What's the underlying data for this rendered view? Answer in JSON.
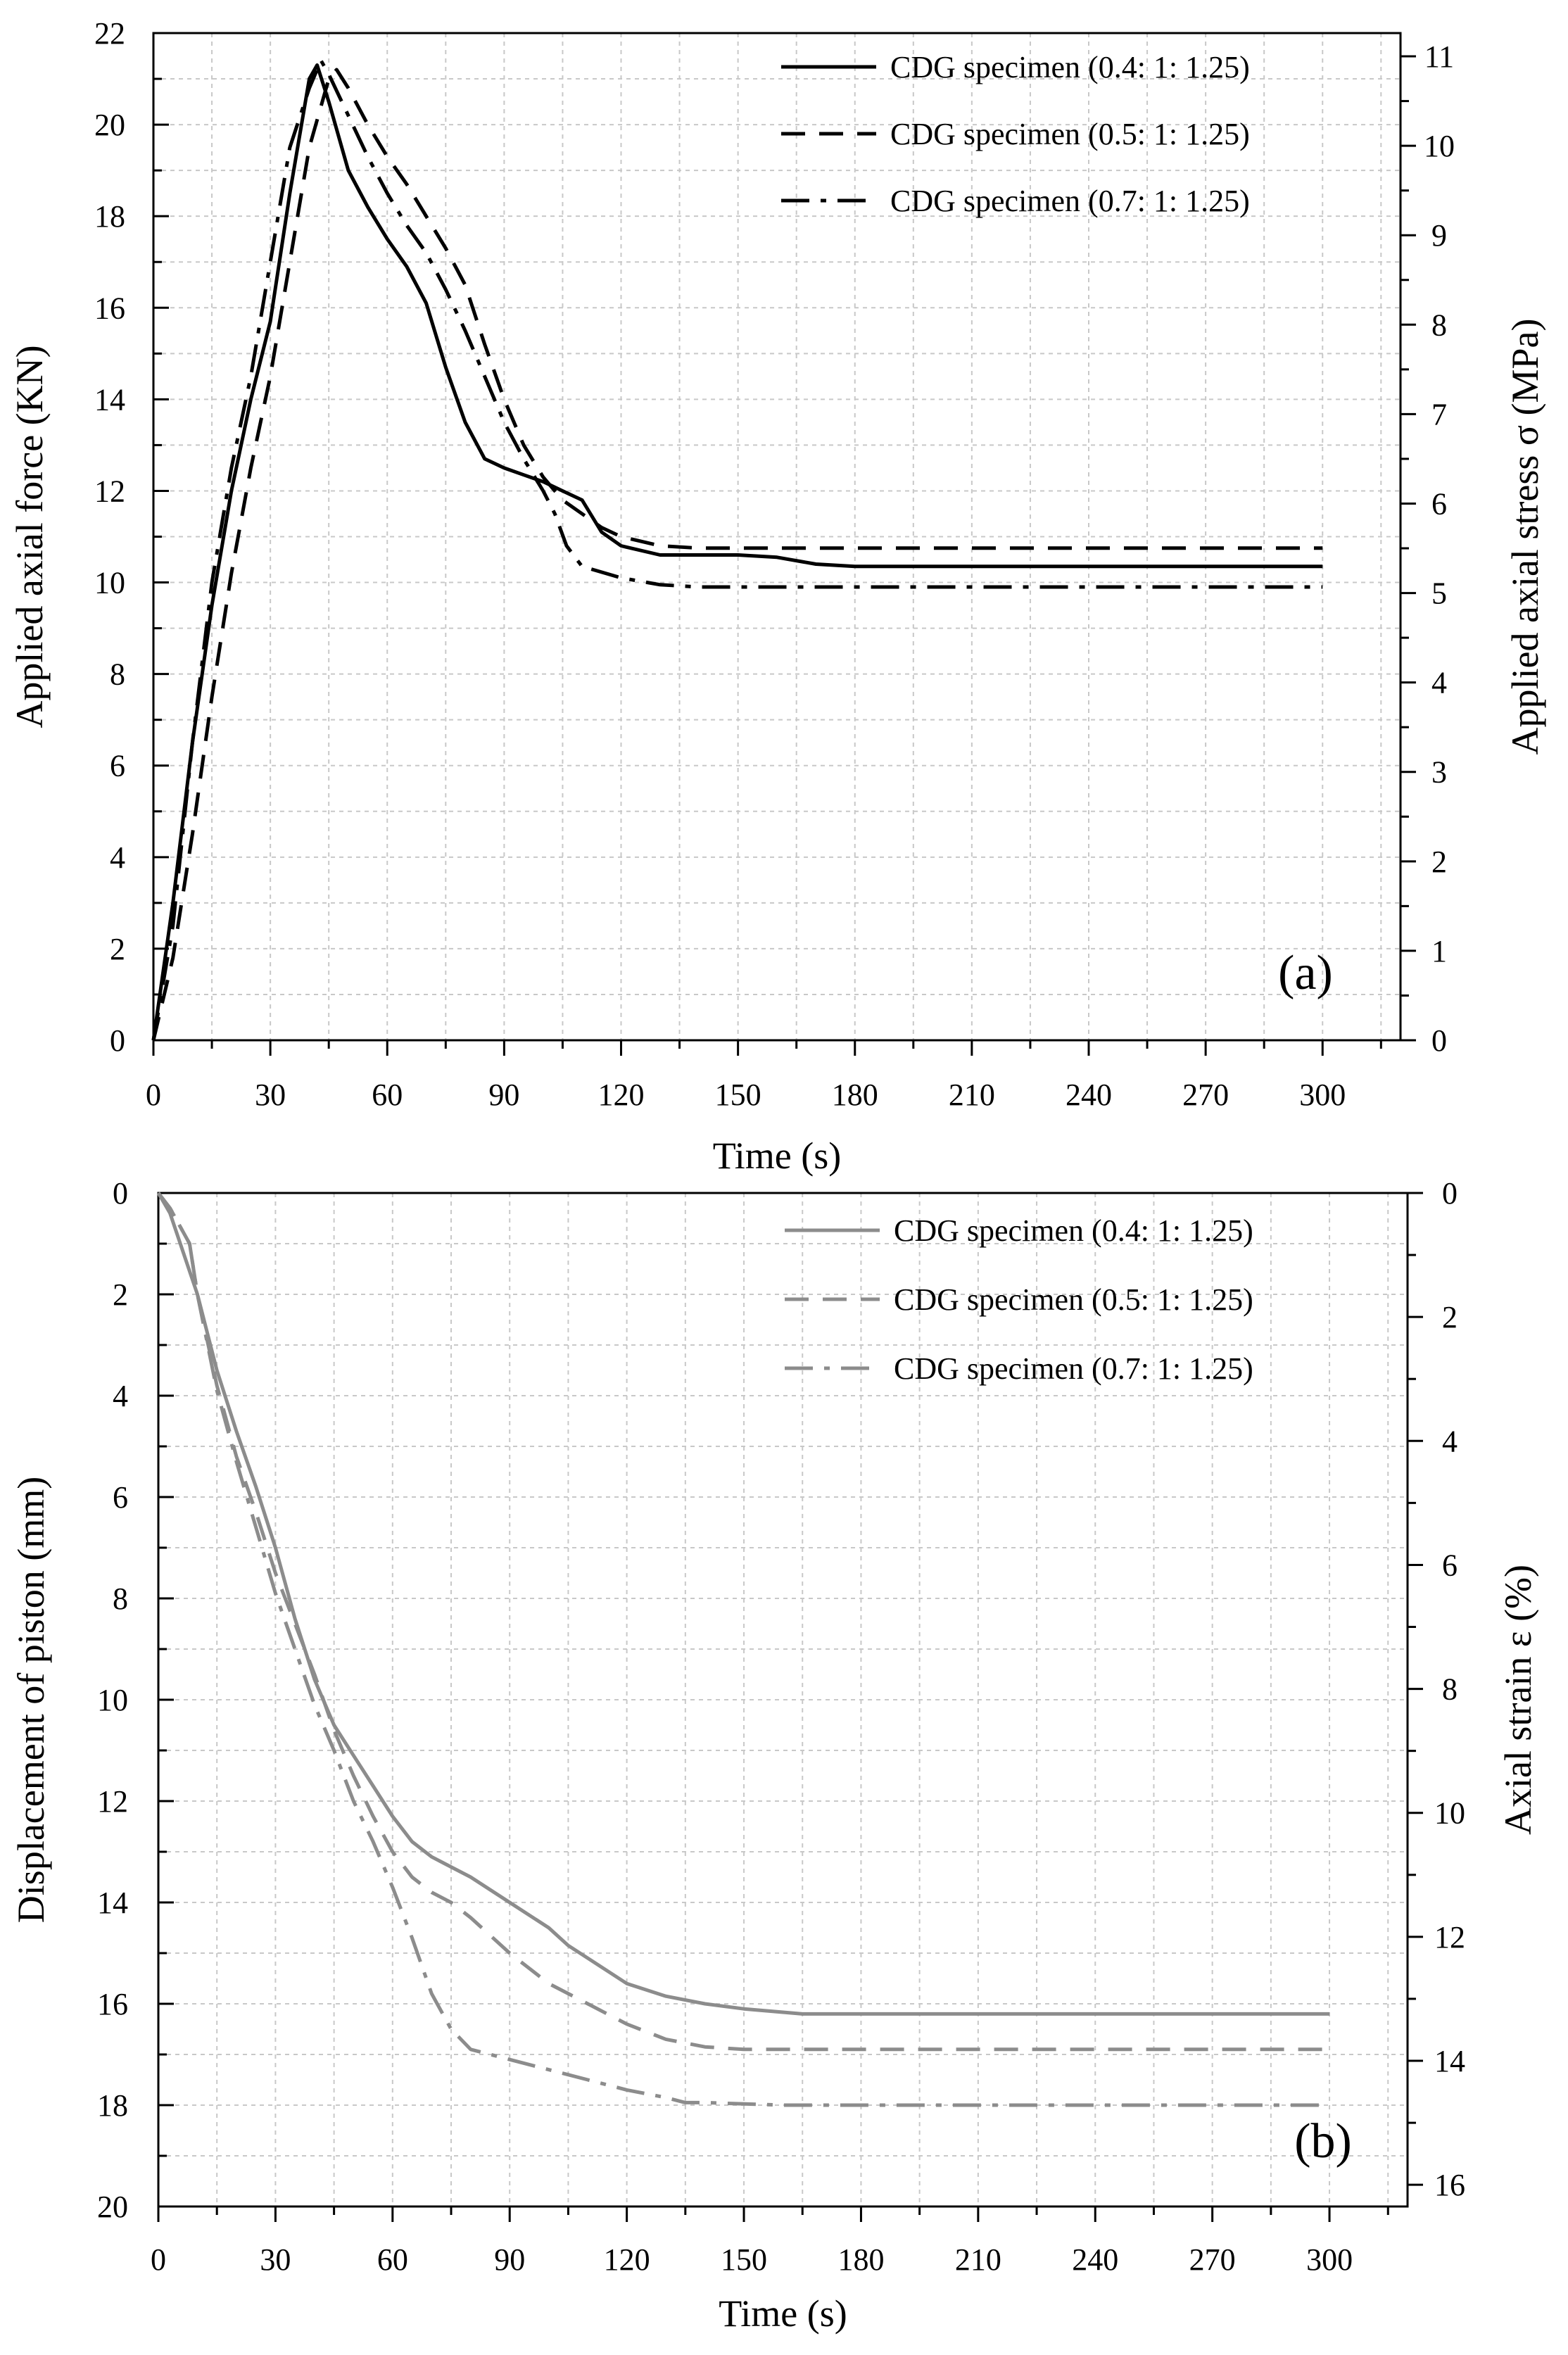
{
  "chart_data": [
    {
      "id": "a",
      "type": "line",
      "panel_label": "(a)",
      "xlabel": "Time (s)",
      "ylabel": "Applied axial force (KN)",
      "y2label": "Applied axial stress σ (MPa)",
      "xlim": [
        0,
        320
      ],
      "ylim": [
        0,
        22
      ],
      "y2lim": [
        0,
        11.26
      ],
      "y_reversed": false,
      "xticks": [
        0,
        30,
        60,
        90,
        120,
        150,
        180,
        210,
        240,
        270,
        300
      ],
      "yticks": [
        0,
        2,
        4,
        6,
        8,
        10,
        12,
        14,
        16,
        18,
        20,
        22
      ],
      "y2ticks": [
        0,
        1,
        2,
        3,
        4,
        5,
        6,
        7,
        8,
        9,
        10,
        11
      ],
      "line_color": "#000000",
      "series": [
        {
          "name": "CDG specimen (0.4: 1: 1.25)",
          "style": "solid",
          "x": [
            0,
            5,
            10,
            15,
            20,
            25,
            30,
            35,
            40,
            42,
            45,
            50,
            55,
            60,
            65,
            70,
            75,
            80,
            85,
            90,
            95,
            100,
            105,
            110,
            115,
            120,
            130,
            140,
            150,
            160,
            170,
            180,
            200,
            250,
            300
          ],
          "y": [
            0,
            3.0,
            6.5,
            9.5,
            12.0,
            14.0,
            15.7,
            18.5,
            21.0,
            21.3,
            20.5,
            19.0,
            18.2,
            17.5,
            16.9,
            16.1,
            14.7,
            13.5,
            12.7,
            12.5,
            12.35,
            12.2,
            12.0,
            11.8,
            11.1,
            10.8,
            10.6,
            10.6,
            10.6,
            10.55,
            10.4,
            10.35,
            10.35,
            10.35,
            10.35
          ]
        },
        {
          "name": "CDG specimen (0.5: 1: 1.25)",
          "style": "dashed",
          "x": [
            0,
            5,
            10,
            15,
            20,
            25,
            30,
            35,
            40,
            45,
            47,
            50,
            55,
            60,
            65,
            70,
            75,
            80,
            85,
            90,
            95,
            100,
            105,
            110,
            115,
            120,
            130,
            140,
            150,
            200,
            250,
            300
          ],
          "y": [
            0,
            1.8,
            4.5,
            7.5,
            10.2,
            12.5,
            14.5,
            17.0,
            19.5,
            21.0,
            21.2,
            20.8,
            20.0,
            19.3,
            18.7,
            18.0,
            17.3,
            16.5,
            15.2,
            14.0,
            13.0,
            12.3,
            11.8,
            11.5,
            11.2,
            11.0,
            10.8,
            10.75,
            10.75,
            10.75,
            10.75,
            10.75
          ]
        },
        {
          "name": "CDG specimen (0.7: 1: 1.25)",
          "style": "dashdot",
          "x": [
            0,
            5,
            10,
            15,
            20,
            25,
            30,
            35,
            40,
            43,
            45,
            50,
            55,
            60,
            65,
            70,
            75,
            80,
            85,
            90,
            95,
            100,
            103,
            106,
            110,
            120,
            130,
            140,
            200,
            250,
            300
          ],
          "y": [
            0,
            2.5,
            6.5,
            10.0,
            12.5,
            14.5,
            17.0,
            19.5,
            20.8,
            21.4,
            21.1,
            20.2,
            19.3,
            18.5,
            17.8,
            17.2,
            16.4,
            15.5,
            14.5,
            13.5,
            12.7,
            12.0,
            11.5,
            10.8,
            10.35,
            10.1,
            9.95,
            9.9,
            9.9,
            9.9,
            9.9
          ]
        }
      ]
    },
    {
      "id": "b",
      "type": "line",
      "panel_label": "(b)",
      "xlabel": "Time (s)",
      "ylabel": "Displacement of piston (mm)",
      "y2label": "Axial strain ε (%)",
      "xlim": [
        0,
        320
      ],
      "ylim": [
        0,
        20
      ],
      "y2lim": [
        0,
        16.35
      ],
      "y_reversed": true,
      "xticks": [
        0,
        30,
        60,
        90,
        120,
        150,
        180,
        210,
        240,
        270,
        300
      ],
      "yticks": [
        0,
        2,
        4,
        6,
        8,
        10,
        12,
        14,
        16,
        18,
        20
      ],
      "y2ticks": [
        0,
        2,
        4,
        6,
        8,
        10,
        12,
        14,
        16
      ],
      "line_color": "#8c8c8c",
      "series": [
        {
          "name": "CDG specimen (0.4: 1: 1.25)",
          "style": "solid",
          "x": [
            0,
            3,
            10,
            15,
            20,
            25,
            30,
            35,
            40,
            45,
            50,
            55,
            60,
            65,
            70,
            75,
            80,
            90,
            100,
            105,
            110,
            115,
            120,
            130,
            140,
            150,
            165,
            180,
            200,
            250,
            300
          ],
          "y": [
            0,
            0.4,
            2.0,
            3.5,
            4.7,
            5.8,
            7.0,
            8.4,
            9.6,
            10.5,
            11.1,
            11.7,
            12.3,
            12.8,
            13.1,
            13.3,
            13.5,
            14.0,
            14.5,
            14.85,
            15.1,
            15.35,
            15.6,
            15.85,
            16.0,
            16.1,
            16.2,
            16.2,
            16.2,
            16.2,
            16.2
          ]
        },
        {
          "name": "CDG specimen (0.5: 1: 1.25)",
          "style": "dashed",
          "x": [
            0,
            3,
            8,
            10,
            15,
            20,
            25,
            30,
            35,
            40,
            45,
            50,
            55,
            60,
            65,
            70,
            75,
            80,
            90,
            100,
            110,
            120,
            130,
            140,
            150,
            160,
            200,
            250,
            300
          ],
          "y": [
            0,
            0.3,
            1.0,
            2.0,
            3.8,
            5.2,
            6.3,
            7.5,
            8.5,
            9.5,
            10.6,
            11.5,
            12.3,
            13.0,
            13.5,
            13.8,
            14.0,
            14.3,
            15.0,
            15.6,
            16.0,
            16.4,
            16.7,
            16.85,
            16.9,
            16.9,
            16.9,
            16.9,
            16.9
          ]
        },
        {
          "name": "CDG specimen (0.7: 1: 1.25)",
          "style": "dashdot",
          "x": [
            0,
            3,
            8,
            10,
            15,
            20,
            25,
            30,
            35,
            40,
            45,
            50,
            55,
            60,
            65,
            70,
            75,
            80,
            85,
            90,
            100,
            110,
            120,
            130,
            135,
            140,
            160,
            200,
            250,
            300
          ],
          "y": [
            0,
            0.3,
            1.0,
            2.0,
            3.9,
            5.3,
            6.6,
            7.9,
            9.0,
            10.1,
            11.0,
            12.0,
            12.8,
            13.7,
            14.7,
            15.8,
            16.5,
            16.9,
            17.0,
            17.1,
            17.3,
            17.5,
            17.7,
            17.85,
            17.95,
            17.95,
            18.0,
            18.0,
            18.0,
            18.0
          ]
        }
      ]
    }
  ]
}
